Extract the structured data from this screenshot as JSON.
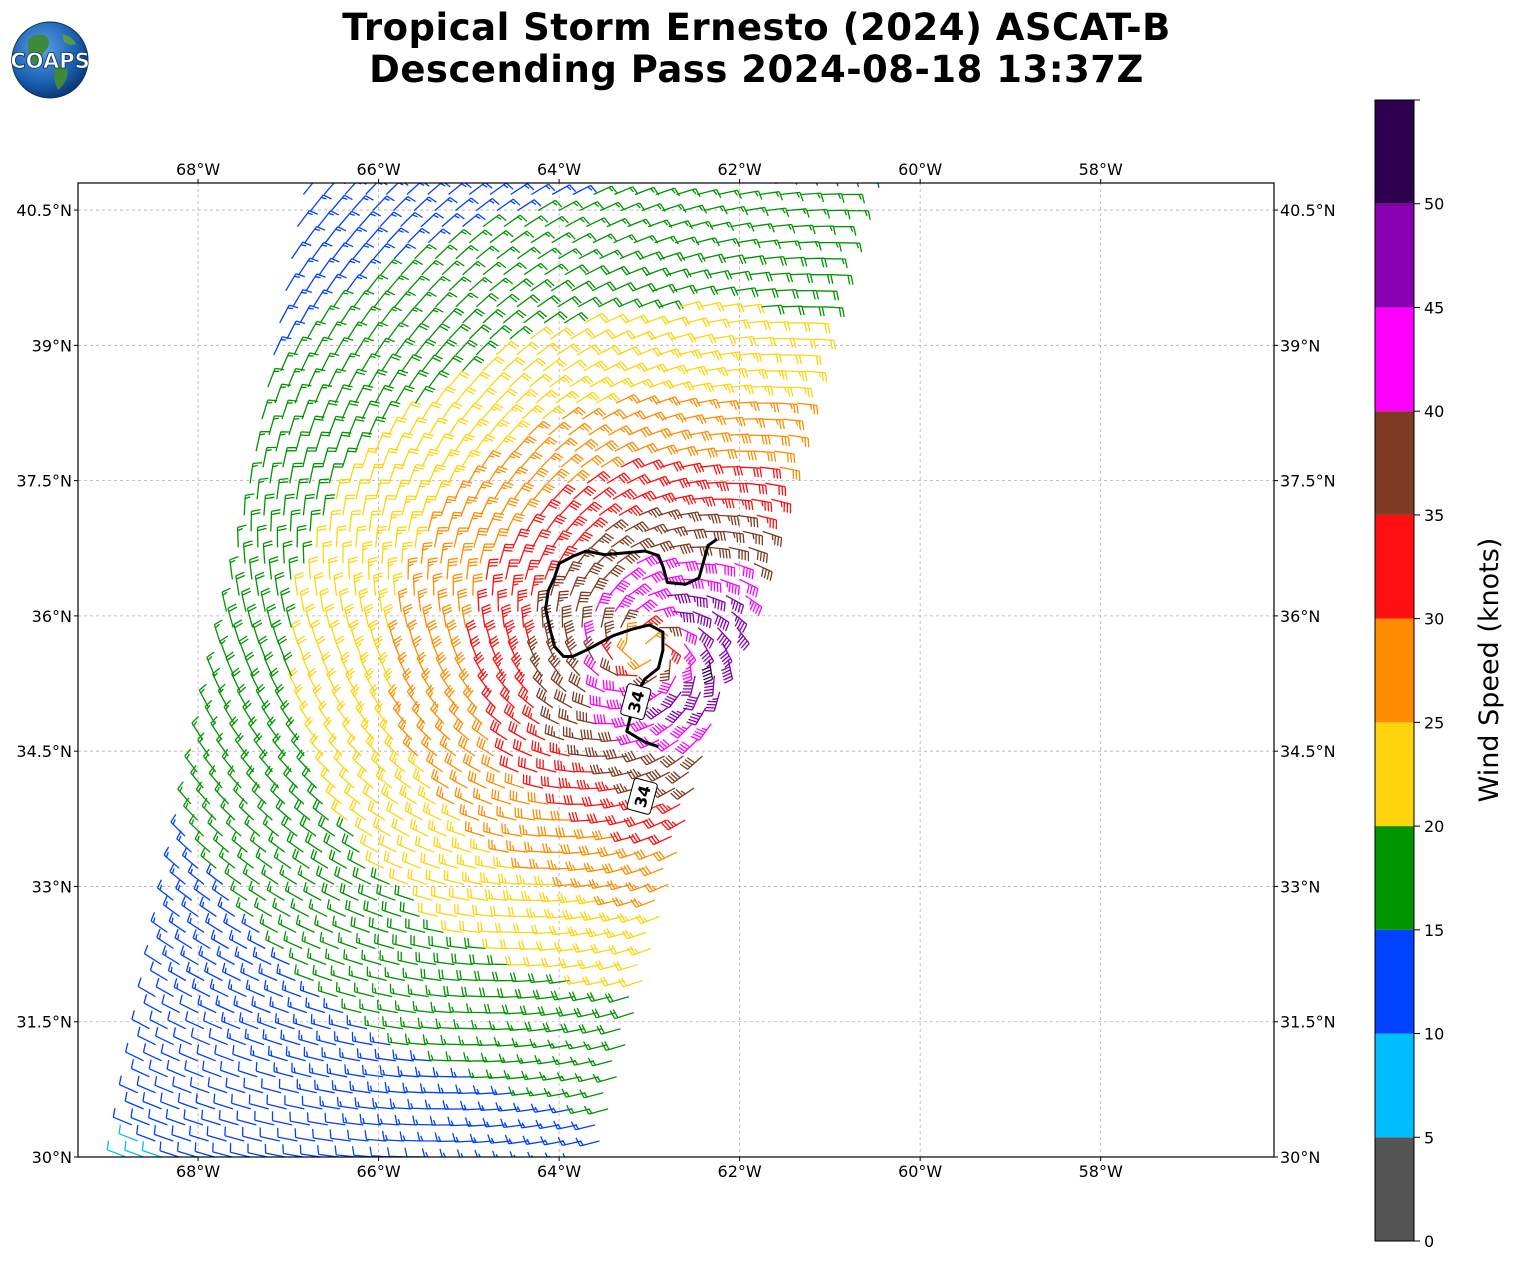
{
  "title_line1": "Tropical Storm Ernesto (2024) ASCAT-B",
  "title_line2": "Descending Pass 2024-08-18 13:37Z",
  "logo": {
    "text": "COAPS",
    "icon": "globe-icon"
  },
  "map": {
    "lon_range": [
      -69.33,
      -56.08
    ],
    "lat_range": [
      30.0,
      40.8
    ],
    "lon_ticks": [
      "68°W",
      "66°W",
      "64°W",
      "62°W",
      "60°W",
      "58°W"
    ],
    "lon_tick_values": [
      -68,
      -66,
      -64,
      -62,
      -60,
      -58
    ],
    "lat_ticks": [
      "30°N",
      "31.5°N",
      "33°N",
      "34.5°N",
      "36°N",
      "37.5°N",
      "39°N",
      "40.5°N"
    ],
    "lat_tick_values": [
      30,
      31.5,
      33,
      34.5,
      36,
      37.5,
      39,
      40.5
    ],
    "grid": true,
    "storm_center": {
      "lon": -63.0,
      "lat": 35.6
    },
    "swath": {
      "lon_top_left": -66.8,
      "lon_top_right": -60.7,
      "lon_bottom_left": -68.8,
      "lon_bottom_right": -63.6
    },
    "contour_label": "34",
    "contour_34kt": [
      [
        -62.25,
        36.85
      ],
      [
        -62.35,
        36.78
      ],
      [
        -62.4,
        36.6
      ],
      [
        -62.45,
        36.42
      ],
      [
        -62.6,
        36.35
      ],
      [
        -62.8,
        36.37
      ],
      [
        -62.85,
        36.55
      ],
      [
        -62.9,
        36.67
      ],
      [
        -63.05,
        36.72
      ],
      [
        -63.25,
        36.7
      ],
      [
        -63.5,
        36.68
      ],
      [
        -63.7,
        36.72
      ],
      [
        -63.85,
        36.66
      ],
      [
        -64.0,
        36.58
      ],
      [
        -64.05,
        36.43
      ],
      [
        -64.12,
        36.28
      ],
      [
        -64.15,
        36.08
      ],
      [
        -64.1,
        35.85
      ],
      [
        -64.05,
        35.66
      ],
      [
        -63.95,
        35.55
      ],
      [
        -63.85,
        35.55
      ],
      [
        -63.7,
        35.62
      ],
      [
        -63.55,
        35.7
      ],
      [
        -63.4,
        35.78
      ],
      [
        -63.2,
        35.85
      ],
      [
        -63.0,
        35.9
      ],
      [
        -62.85,
        35.82
      ],
      [
        -62.85,
        35.62
      ],
      [
        -62.9,
        35.42
      ],
      [
        -63.05,
        35.3
      ],
      [
        -63.15,
        35.12
      ],
      [
        -63.2,
        34.92
      ],
      [
        -63.25,
        34.72
      ],
      [
        -63.05,
        34.6
      ],
      [
        -62.9,
        34.55
      ]
    ],
    "contour_labels_at": [
      [
        -63.15,
        35.05
      ],
      [
        -63.08,
        34.0
      ]
    ],
    "speed_model": {
      "rmax_deg": 0.55,
      "vmax_kt": 46,
      "outer_scale_deg": 3.1
    }
  },
  "colorbar": {
    "label": "Wind Speed (knots)",
    "bounds": [
      0,
      5,
      10,
      15,
      20,
      25,
      30,
      35,
      40,
      45,
      50,
      55
    ],
    "tick_labels": [
      "0",
      "5",
      "10",
      "15",
      "20",
      "25",
      "30",
      "35",
      "40",
      "45",
      "50"
    ],
    "colors": [
      "#555555",
      "#00bfff",
      "#0040ff",
      "#009400",
      "#ffd40f",
      "#ff8c00",
      "#ff0f0f",
      "#7f3a22",
      "#ff00ff",
      "#8700b0",
      "#2e004f"
    ]
  }
}
